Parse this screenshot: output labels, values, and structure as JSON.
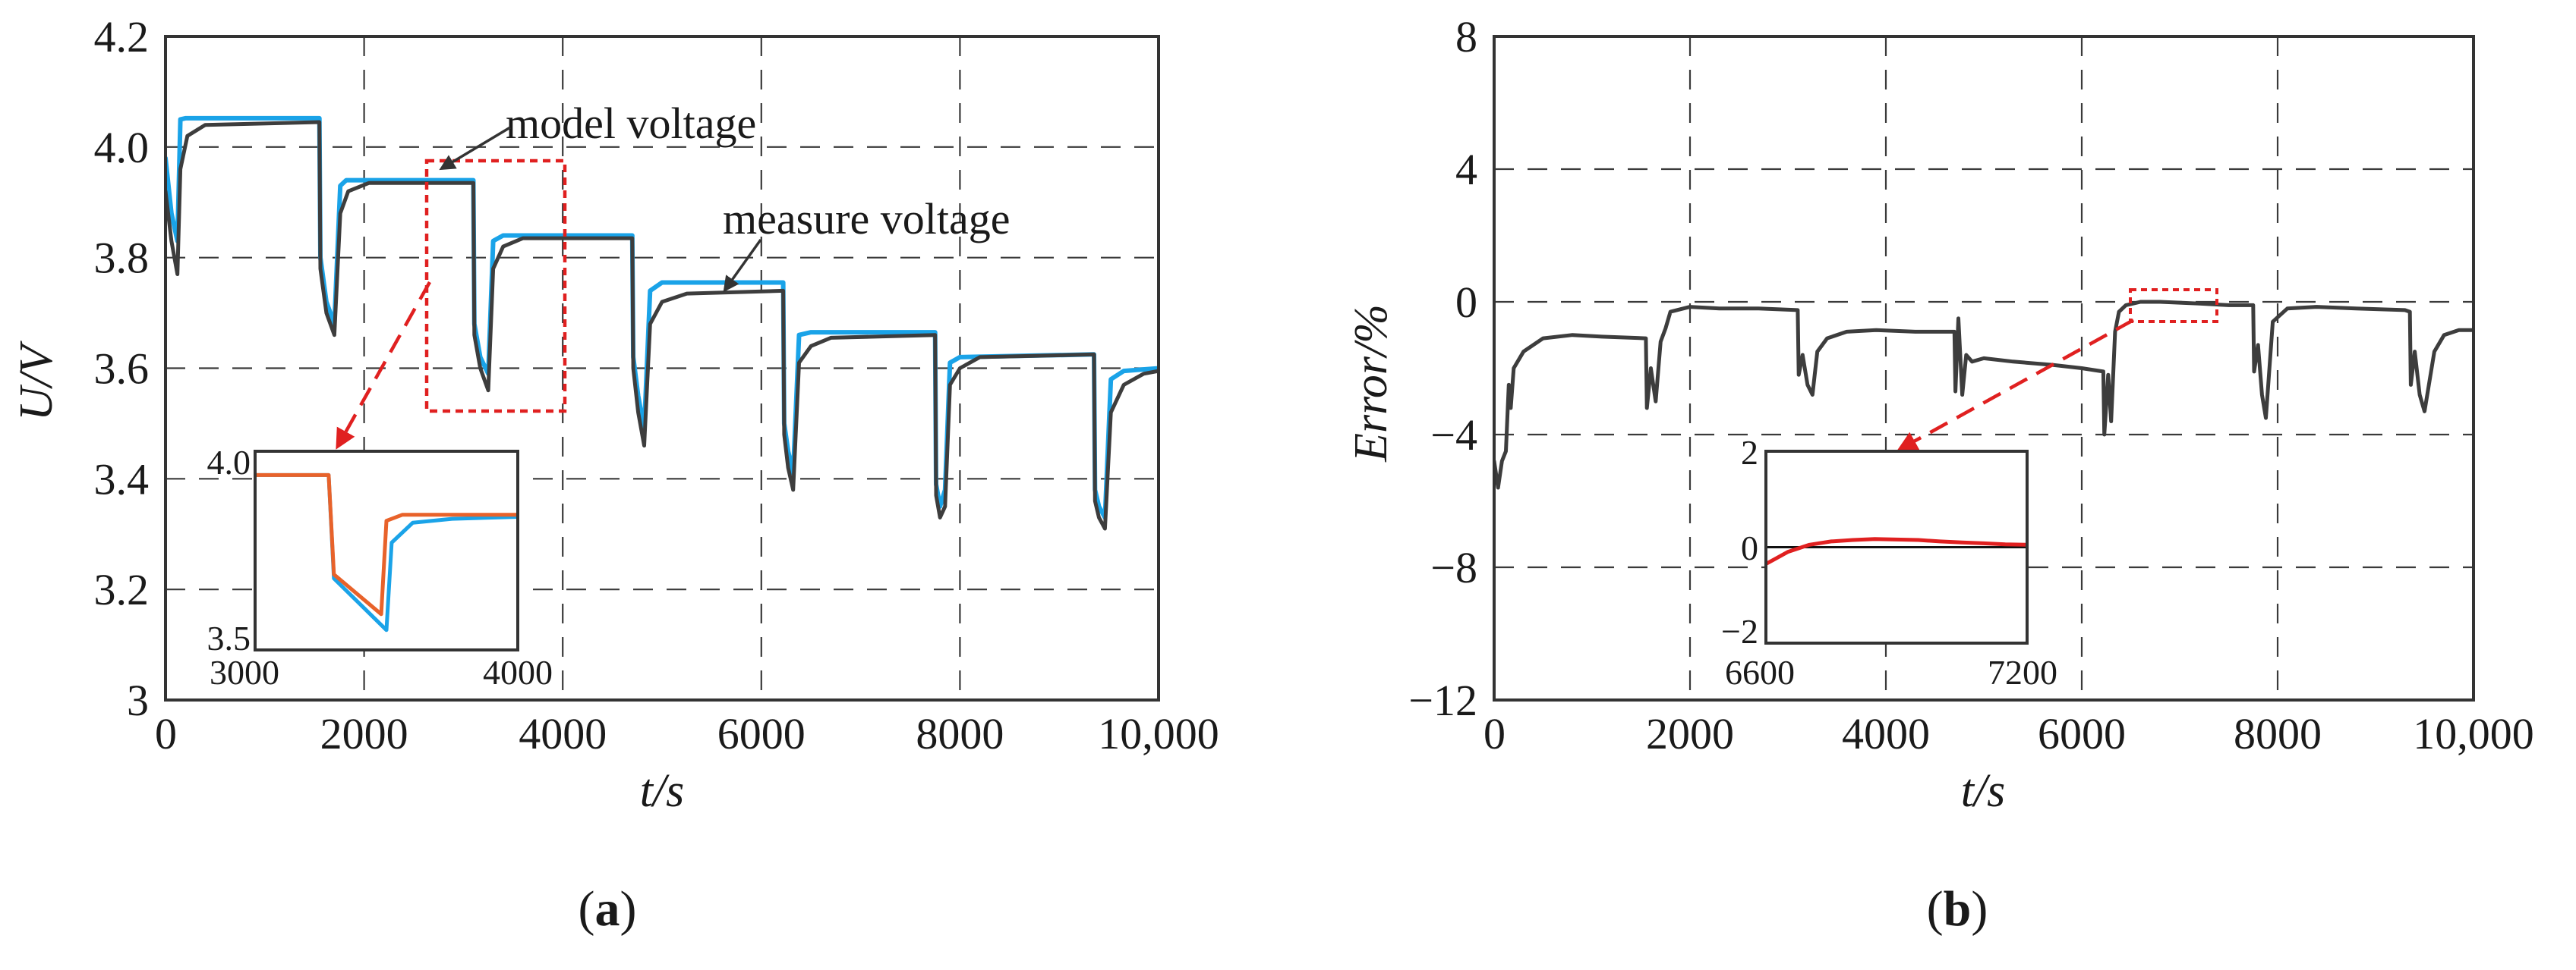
{
  "chart_data": [
    {
      "type": "line",
      "panel": "(a)",
      "panel_letter": "a",
      "xlabel": "t/s",
      "ylabel": "U/V",
      "xlim": [
        0,
        10000
      ],
      "ylim": [
        3.0,
        4.2
      ],
      "x_ticks": [
        0,
        2000,
        4000,
        6000,
        8000,
        10000
      ],
      "x_tick_labels": [
        "0",
        "2000",
        "4000",
        "6000",
        "8000",
        "10,000"
      ],
      "y_ticks": [
        3.0,
        3.2,
        3.4,
        3.6,
        3.8,
        4.0,
        4.2
      ],
      "y_tick_labels": [
        "3",
        "3.2",
        "3.4",
        "3.6",
        "3.8",
        "4.0",
        "4.2"
      ],
      "grid": true,
      "colors": {
        "model": "#1aa3e8",
        "measure": "#3d3d3d",
        "highlight": "#e02020",
        "inset_model": "#e8622a"
      },
      "annotations": {
        "model_label": "model voltage",
        "measure_label": "measure voltage"
      },
      "series": [
        {
          "name": "model voltage",
          "x": [
            0,
            60,
            120,
            150,
            200,
            1550,
            1560,
            1620,
            1700,
            1760,
            1820,
            3100,
            3110,
            3170,
            3250,
            3300,
            3400,
            4700,
            4710,
            4760,
            4820,
            4880,
            5000,
            6220,
            6230,
            6270,
            6320,
            6380,
            6500,
            7750,
            7760,
            7800,
            7850,
            7900,
            8000,
            9350,
            9360,
            9400,
            9460,
            9520,
            9650,
            10000
          ],
          "y": [
            3.98,
            3.88,
            3.83,
            4.05,
            4.052,
            4.052,
            3.8,
            3.72,
            3.68,
            3.93,
            3.94,
            3.94,
            3.68,
            3.62,
            3.59,
            3.83,
            3.84,
            3.84,
            3.62,
            3.55,
            3.49,
            3.74,
            3.755,
            3.755,
            3.5,
            3.45,
            3.41,
            3.66,
            3.665,
            3.665,
            3.39,
            3.35,
            3.38,
            3.61,
            3.62,
            3.625,
            3.38,
            3.35,
            3.33,
            3.58,
            3.595,
            3.6
          ]
        },
        {
          "name": "measure voltage",
          "x": [
            0,
            60,
            120,
            150,
            220,
            400,
            1550,
            1560,
            1620,
            1700,
            1760,
            1840,
            2050,
            3100,
            3110,
            3170,
            3250,
            3300,
            3400,
            3600,
            4700,
            4710,
            4760,
            4820,
            4880,
            5000,
            5250,
            6220,
            6230,
            6270,
            6320,
            6380,
            6500,
            6700,
            7750,
            7760,
            7800,
            7850,
            7900,
            8000,
            8200,
            9350,
            9360,
            9400,
            9460,
            9520,
            9650,
            9850,
            10000
          ],
          "y": [
            3.92,
            3.83,
            3.77,
            3.96,
            4.02,
            4.04,
            4.045,
            3.78,
            3.7,
            3.66,
            3.88,
            3.92,
            3.935,
            3.935,
            3.66,
            3.6,
            3.56,
            3.78,
            3.82,
            3.835,
            3.835,
            3.6,
            3.52,
            3.46,
            3.68,
            3.72,
            3.735,
            3.74,
            3.48,
            3.42,
            3.38,
            3.61,
            3.64,
            3.655,
            3.66,
            3.37,
            3.33,
            3.35,
            3.57,
            3.6,
            3.62,
            3.625,
            3.36,
            3.33,
            3.31,
            3.52,
            3.57,
            3.59,
            3.595
          ]
        }
      ],
      "inset": {
        "xlim": [
          3000,
          4000
        ],
        "ylim": [
          3.5,
          4.0
        ],
        "x_tick_labels": [
          "3000",
          "4000"
        ],
        "y_tick_labels": [
          "3.5",
          "4.0"
        ],
        "series": [
          {
            "name": "measure voltage",
            "x": [
              3000,
              3280,
              3300,
              3500,
              3520,
              3600,
              3750,
              4000
            ],
            "y": [
              3.94,
              3.94,
              3.68,
              3.55,
              3.77,
              3.82,
              3.83,
              3.835
            ]
          },
          {
            "name": "model voltage",
            "x": [
              3000,
              3280,
              3300,
              3480,
              3500,
              3560,
              3750,
              4000
            ],
            "y": [
              3.94,
              3.94,
              3.69,
              3.59,
              3.825,
              3.84,
              3.84,
              3.84
            ]
          }
        ]
      }
    },
    {
      "type": "line",
      "panel": "(b)",
      "panel_letter": "b",
      "xlabel": "t/s",
      "ylabel": "Error/%",
      "xlim": [
        0,
        10000
      ],
      "ylim": [
        -12,
        8
      ],
      "x_ticks": [
        0,
        2000,
        4000,
        6000,
        8000,
        10000
      ],
      "x_tick_labels": [
        "0",
        "2000",
        "4000",
        "6000",
        "8000",
        "10,000"
      ],
      "y_ticks": [
        -12,
        -8,
        -4,
        0,
        4,
        8
      ],
      "y_tick_labels": [
        "−12",
        "−8",
        "−4",
        "0",
        "4",
        "8"
      ],
      "grid": true,
      "colors": {
        "error": "#3d3d3d",
        "highlight": "#e02020"
      },
      "series": [
        {
          "name": "error",
          "x": [
            0,
            40,
            80,
            120,
            150,
            170,
            200,
            300,
            500,
            800,
            1100,
            1550,
            1560,
            1600,
            1650,
            1700,
            1750,
            1800,
            2000,
            2300,
            2700,
            3100,
            3110,
            3150,
            3200,
            3250,
            3300,
            3400,
            3600,
            3900,
            4300,
            4700,
            4710,
            4740,
            4780,
            4820,
            4880,
            5000,
            5300,
            5700,
            6000,
            6220,
            6230,
            6270,
            6300,
            6340,
            6380,
            6450,
            6600,
            6800,
            7200,
            7500,
            7750,
            7760,
            7800,
            7840,
            7880,
            7950,
            8100,
            8400,
            8800,
            9300,
            9350,
            9360,
            9400,
            9450,
            9500,
            9600,
            9700,
            9850,
            10000
          ],
          "y": [
            -4.8,
            -5.6,
            -4.8,
            -4.5,
            -2.5,
            -3.2,
            -2.0,
            -1.5,
            -1.1,
            -1.0,
            -1.05,
            -1.1,
            -3.2,
            -2.0,
            -3.0,
            -1.2,
            -0.8,
            -0.3,
            -0.15,
            -0.2,
            -0.2,
            -0.25,
            -2.2,
            -1.6,
            -2.5,
            -2.8,
            -1.5,
            -1.1,
            -0.9,
            -0.85,
            -0.9,
            -0.9,
            -2.7,
            -0.5,
            -2.8,
            -1.6,
            -1.8,
            -1.7,
            -1.8,
            -1.9,
            -2.0,
            -2.1,
            -4.0,
            -2.2,
            -3.6,
            -0.9,
            -0.3,
            -0.1,
            0.0,
            0.0,
            -0.05,
            -0.1,
            -0.1,
            -2.1,
            -1.3,
            -2.8,
            -3.5,
            -0.6,
            -0.2,
            -0.15,
            -0.2,
            -0.25,
            -0.3,
            -2.5,
            -1.5,
            -2.8,
            -3.3,
            -1.5,
            -1.0,
            -0.85,
            -0.85
          ]
        }
      ],
      "inset": {
        "xlim": [
          6600,
          7200
        ],
        "ylim": [
          -2,
          2
        ],
        "x_tick_labels": [
          "6600",
          "7200"
        ],
        "y_tick_labels": [
          "2",
          "0",
          "−2"
        ],
        "series": [
          {
            "name": "error",
            "x": [
              6600,
              6620,
              6650,
              6700,
              6750,
              6800,
              6850,
              6900,
              6950,
              7000,
              7050,
              7100,
              7150,
              7200
            ],
            "y": [
              -0.35,
              -0.25,
              -0.1,
              0.05,
              0.12,
              0.15,
              0.17,
              0.16,
              0.15,
              0.12,
              0.1,
              0.08,
              0.06,
              0.05
            ]
          }
        ]
      }
    }
  ]
}
